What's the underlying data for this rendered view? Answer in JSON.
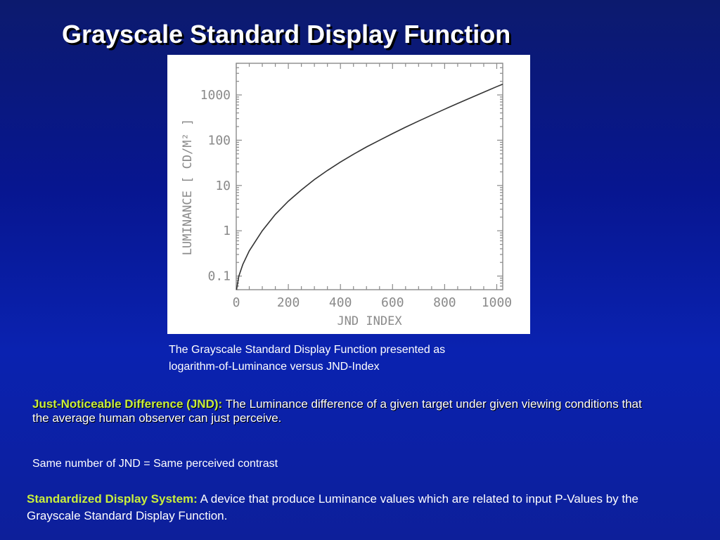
{
  "slide": {
    "title": "Grayscale Standard Display Function"
  },
  "chart_data": {
    "type": "line",
    "xlabel": "JND INDEX",
    "ylabel": "LUMINANCE [ CD/M² ]",
    "xlim": [
      0,
      1023
    ],
    "ylim": [
      0.05,
      5000
    ],
    "y_scale": "log",
    "x_ticks": [
      0,
      200,
      400,
      600,
      800,
      1000
    ],
    "x_tick_labels": [
      "0",
      "200",
      "400",
      "600",
      "800",
      "1000"
    ],
    "y_ticks": [
      0.1,
      1,
      10,
      100,
      1000
    ],
    "y_tick_labels": [
      "0.1",
      "1",
      "10",
      "100",
      "1000"
    ],
    "grid": false,
    "series": [
      {
        "x": [
          1,
          10,
          25,
          50,
          100,
          150,
          200,
          250,
          300,
          350,
          400,
          450,
          500,
          550,
          600,
          650,
          700,
          750,
          800,
          850,
          900,
          950,
          1000,
          1023
        ],
        "y": [
          0.05,
          0.1,
          0.18,
          0.36,
          1.0,
          2.3,
          4.5,
          8.0,
          13.5,
          21.5,
          33,
          49,
          71,
          100,
          140,
          194,
          265,
          359,
          484,
          649,
          865,
          1150,
          1523,
          1728
        ]
      }
    ]
  },
  "caption": {
    "line1": "The Grayscale Standard Display Function presented as",
    "line2": "logarithm-of-Luminance versus JND-Index"
  },
  "definitions": {
    "jnd_term": "Just-Noticeable Difference (JND):",
    "jnd_text": "The Luminance difference of a given target under given viewing conditions that the average human observer can just perceive.",
    "same_contrast": "Same number of JND = Same perceived contrast",
    "sds_term": "Standardized Display System:",
    "sds_text": "A device that produce Luminance values which are related to input P-Values by the Grayscale Standard Display Function."
  },
  "colors": {
    "background": "#0a1c9c",
    "term_highlight": "#c8ee3c",
    "curve": "#333333",
    "axis": "#8a8a8a"
  }
}
